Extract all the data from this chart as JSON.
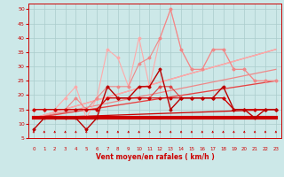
{
  "background_color": "#cce8e8",
  "grid_color": "#aacccc",
  "xlabel": "Vent moyen/en rafales ( km/h )",
  "xlabel_color": "#cc0000",
  "ylabel_ticks": [
    5,
    10,
    15,
    20,
    25,
    30,
    35,
    40,
    45,
    50
  ],
  "xlim": [
    -0.5,
    23.5
  ],
  "ylim": [
    5,
    52
  ],
  "x": [
    0,
    1,
    2,
    3,
    4,
    5,
    6,
    7,
    8,
    9,
    10,
    11,
    12,
    13,
    14,
    15,
    16,
    17,
    18,
    19,
    20,
    21,
    22,
    23
  ],
  "series": [
    {
      "y": [
        8,
        12,
        12,
        12,
        12,
        8,
        12,
        23,
        19,
        19,
        23,
        23,
        29,
        15,
        19,
        19,
        19,
        19,
        23,
        15,
        15,
        12,
        15,
        15
      ],
      "color": "#bb0000",
      "lw": 1.0,
      "marker": "D",
      "markersize": 1.5,
      "zorder": 10
    },
    {
      "y": [
        12,
        12,
        12,
        12,
        12,
        12,
        12,
        12,
        12,
        12,
        12,
        12,
        12,
        12,
        12,
        12,
        12,
        12,
        12,
        12,
        12,
        12,
        12,
        12
      ],
      "color": "#cc0000",
      "lw": 3.0,
      "marker": null,
      "markersize": 0,
      "zorder": 8
    },
    {
      "y": [
        15,
        15,
        15,
        15,
        15,
        15,
        15,
        19,
        19,
        19,
        19,
        19,
        19,
        19,
        19,
        19,
        19,
        19,
        19,
        15,
        15,
        15,
        15,
        15
      ],
      "color": "#cc0000",
      "lw": 0.8,
      "marker": "D",
      "markersize": 1.5,
      "zorder": 7
    },
    {
      "y": [
        15,
        15,
        15,
        15,
        15,
        15,
        15,
        19,
        19,
        19,
        19,
        19,
        23,
        23,
        19,
        19,
        19,
        19,
        19,
        15,
        15,
        15,
        15,
        15
      ],
      "color": "#dd4444",
      "lw": 0.8,
      "marker": "D",
      "markersize": 1.5,
      "zorder": 6
    },
    {
      "y": [
        15,
        15,
        15,
        15,
        19,
        15,
        19,
        23,
        23,
        23,
        31,
        33,
        40,
        50,
        36,
        29,
        29,
        36,
        36,
        29,
        29,
        25,
        25,
        25
      ],
      "color": "#ee8888",
      "lw": 0.8,
      "marker": "D",
      "markersize": 1.5,
      "zorder": 5
    },
    {
      "y": [
        15,
        15,
        15,
        19,
        23,
        12,
        19,
        36,
        33,
        23,
        40,
        23,
        40,
        50,
        36,
        29,
        29,
        36,
        36,
        29,
        29,
        25,
        25,
        25
      ],
      "color": "#ffaaaa",
      "lw": 0.8,
      "marker": "D",
      "markersize": 1.5,
      "zorder": 4
    }
  ],
  "trend_lines": [
    {
      "x0": 0,
      "y0": 12,
      "x1": 23,
      "y1": 25,
      "color": "#ffbbbb",
      "lw": 0.9
    },
    {
      "x0": 0,
      "y0": 12,
      "x1": 23,
      "y1": 29,
      "color": "#ee8888",
      "lw": 0.9
    },
    {
      "x0": 0,
      "y0": 12,
      "x1": 23,
      "y1": 36,
      "color": "#ee8888",
      "lw": 0.9
    },
    {
      "x0": 0,
      "y0": 12,
      "x1": 23,
      "y1": 36,
      "color": "#ffaaaa",
      "lw": 0.9
    },
    {
      "x0": 0,
      "y0": 12,
      "x1": 23,
      "y1": 25,
      "color": "#dd4444",
      "lw": 0.9
    },
    {
      "x0": 0,
      "y0": 12,
      "x1": 23,
      "y1": 15,
      "color": "#cc0000",
      "lw": 0.9
    }
  ],
  "arrow_color": "#cc0000"
}
